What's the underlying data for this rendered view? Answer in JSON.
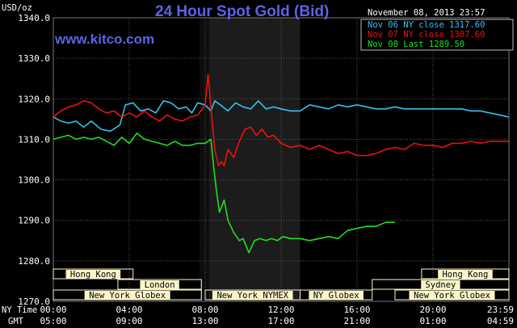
{
  "header": {
    "title": "24 Hour Spot Gold (Bid)",
    "website": "www.kitco.com",
    "unit": "USD/oz",
    "timestamp": "November 08, 2013 23:57"
  },
  "colors": {
    "background": "#000000",
    "title": "#5b63e6",
    "grid": "#5a5a5a",
    "nov06": "#33c0ee",
    "nov07": "#ee1111",
    "nov08": "#22dd22",
    "session_bar": "#fbf4c8",
    "nymex_shade": "#1c1c1c",
    "london_shade": "#0d0d0d"
  },
  "chart_data": {
    "type": "line",
    "title": "24 Hour Spot Gold (Bid)",
    "ylabel": "USD/oz",
    "ylim": [
      1270,
      1340
    ],
    "y_ticks": [
      "1340.0",
      "1330.0",
      "1320.0",
      "1310.0",
      "1300.0",
      "1290.0",
      "1280.0",
      "1270.0"
    ],
    "xlim": [
      0,
      24
    ],
    "x_axis_labels": {
      "ny_time": "NY Time",
      "gmt": "GMT"
    },
    "x_ticks_ny": [
      "00:00",
      "04:00",
      "08:00",
      "12:00",
      "16:00",
      "20:00",
      "23:59"
    ],
    "x_ticks_gmt": [
      "05:00",
      "09:00",
      "13:00",
      "17:00",
      "21:00",
      "01:00",
      "04:59"
    ],
    "grid": true,
    "legend_position": "top-right",
    "series": [
      {
        "name": "Nov 06 NY close 1317.60",
        "x": [
          0,
          0.4,
          0.8,
          1.2,
          1.6,
          2.0,
          2.5,
          3.0,
          3.5,
          3.8,
          4.2,
          4.6,
          5.0,
          5.4,
          5.8,
          6.2,
          6.6,
          7.0,
          7.3,
          7.6,
          8.0,
          8.3,
          8.5,
          8.8,
          9.2,
          9.6,
          10.0,
          10.4,
          10.8,
          11.2,
          11.6,
          12.0,
          12.5,
          13.0,
          13.5,
          14.0,
          14.5,
          15.0,
          15.5,
          16.0,
          16.5,
          17.0,
          17.5,
          18.0,
          18.5,
          19.0,
          19.5,
          20.0,
          20.5,
          21.0,
          21.5,
          22.0,
          22.5,
          23.0,
          23.5,
          23.98
        ],
        "y": [
          1315.5,
          1314.5,
          1314.0,
          1314.5,
          1313.0,
          1314.5,
          1312.5,
          1312.0,
          1313.5,
          1318.5,
          1319.0,
          1317.0,
          1317.5,
          1316.5,
          1319.5,
          1319.0,
          1317.5,
          1318.0,
          1316.5,
          1319.0,
          1318.5,
          1317.0,
          1319.5,
          1318.5,
          1317.0,
          1319.0,
          1318.0,
          1317.5,
          1319.5,
          1317.5,
          1318.0,
          1317.5,
          1317.0,
          1317.0,
          1318.5,
          1318.0,
          1317.5,
          1318.5,
          1318.0,
          1318.5,
          1318.0,
          1317.5,
          1317.5,
          1318.0,
          1317.5,
          1317.5,
          1317.5,
          1317.5,
          1317.5,
          1317.5,
          1317.5,
          1317.0,
          1317.0,
          1316.5,
          1316.0,
          1315.5
        ]
      },
      {
        "name": "Nov 07 NY close 1307.60",
        "x": [
          0,
          0.4,
          0.8,
          1.2,
          1.6,
          2.0,
          2.4,
          2.8,
          3.2,
          3.6,
          4.0,
          4.4,
          4.8,
          5.2,
          5.6,
          6.0,
          6.4,
          6.8,
          7.2,
          7.6,
          8.0,
          8.15,
          8.3,
          8.5,
          8.7,
          8.85,
          9.0,
          9.2,
          9.5,
          9.8,
          10.1,
          10.4,
          10.7,
          11.0,
          11.3,
          11.6,
          12.0,
          12.5,
          13.0,
          13.5,
          14.0,
          14.5,
          15.0,
          15.5,
          16.0,
          16.5,
          17.0,
          17.5,
          18.0,
          18.5,
          19.0,
          19.5,
          20.0,
          20.5,
          21.0,
          21.5,
          22.0,
          22.5,
          23.0,
          23.5,
          23.98
        ],
        "y": [
          1315.5,
          1317.0,
          1318.0,
          1318.5,
          1319.5,
          1319.0,
          1317.5,
          1316.5,
          1317.0,
          1315.5,
          1316.5,
          1315.5,
          1317.0,
          1315.5,
          1314.5,
          1316.0,
          1315.0,
          1314.5,
          1315.5,
          1316.0,
          1318.5,
          1326.0,
          1318.0,
          1307.5,
          1303.5,
          1304.5,
          1303.5,
          1307.5,
          1305.5,
          1309.5,
          1312.5,
          1313.0,
          1311.0,
          1312.5,
          1310.5,
          1311.0,
          1309.0,
          1308.0,
          1308.5,
          1307.5,
          1308.5,
          1307.5,
          1306.5,
          1307.0,
          1306.0,
          1306.0,
          1306.5,
          1307.5,
          1308.0,
          1307.5,
          1309.0,
          1308.5,
          1308.5,
          1308.0,
          1309.0,
          1309.0,
          1309.5,
          1309.0,
          1309.5,
          1309.5,
          1309.5
        ]
      },
      {
        "name": "Nov 08 Last 1289.50",
        "x": [
          0,
          0.4,
          0.8,
          1.2,
          1.6,
          2.0,
          2.4,
          2.8,
          3.2,
          3.6,
          4.0,
          4.4,
          4.8,
          5.2,
          5.6,
          6.0,
          6.4,
          6.8,
          7.2,
          7.6,
          8.0,
          8.3,
          8.45,
          8.6,
          8.75,
          9.0,
          9.2,
          9.5,
          9.8,
          10.0,
          10.3,
          10.6,
          10.9,
          11.2,
          11.5,
          11.8,
          12.1,
          12.5,
          13.0,
          13.5,
          14.0,
          14.5,
          15.0,
          15.5,
          16.0,
          16.5,
          17.0,
          17.5,
          18.0
        ],
        "y": [
          1310.0,
          1310.5,
          1311.0,
          1310.0,
          1310.5,
          1310.0,
          1310.5,
          1309.5,
          1308.5,
          1310.5,
          1309.0,
          1311.5,
          1310.0,
          1309.5,
          1309.0,
          1308.5,
          1309.5,
          1308.5,
          1308.5,
          1309.0,
          1309.0,
          1310.0,
          1303.0,
          1297.0,
          1292.0,
          1295.0,
          1290.0,
          1287.0,
          1285.0,
          1285.5,
          1282.0,
          1285.0,
          1285.5,
          1285.0,
          1285.5,
          1285.0,
          1286.0,
          1285.5,
          1285.5,
          1285.0,
          1285.5,
          1286.0,
          1285.5,
          1287.5,
          1288.0,
          1288.5,
          1288.5,
          1289.5,
          1289.5
        ]
      }
    ],
    "sessions": [
      {
        "name": "Hong Kong",
        "row": 0,
        "start": 0,
        "end": 4.2
      },
      {
        "name": "London",
        "row": 1,
        "start": 3.4,
        "end": 7.8
      },
      {
        "name": "New York Globex",
        "row": 2,
        "start": 0,
        "end": 7.8
      },
      {
        "name": "New York NYMEX",
        "row": 2,
        "start": 8.0,
        "end": 13.0
      },
      {
        "name": "NY Globex",
        "row": 2,
        "start": 13.0,
        "end": 16.8
      },
      {
        "name": "Hong Kong",
        "row": 0,
        "start": 19.4,
        "end": 24
      },
      {
        "name": "Sydney",
        "row": 1,
        "start": 16.8,
        "end": 24
      },
      {
        "name": "New York Globex",
        "row": 2,
        "start": 18.0,
        "end": 24
      }
    ],
    "shaded_regions": [
      {
        "name": "london",
        "start": 7.7,
        "end": 8.2
      },
      {
        "name": "nymex",
        "start": 8.2,
        "end": 13.0
      }
    ]
  }
}
